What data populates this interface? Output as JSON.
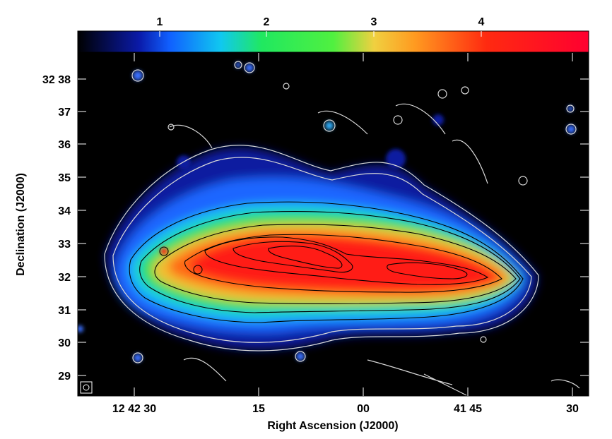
{
  "colorbar": {
    "ticks": [
      "1",
      "2",
      "3",
      "4"
    ],
    "stops": [
      "#000000",
      "#0a1aa8",
      "#1060ff",
      "#10c8f0",
      "#20e860",
      "#50f040",
      "#f0d040",
      "#ff9a20",
      "#ff2a10",
      "#ff0030"
    ]
  },
  "yaxis": {
    "label": "Declination (J2000)",
    "ticks": [
      "32 38",
      "37",
      "36",
      "35",
      "34",
      "33",
      "32",
      "31",
      "30",
      "29"
    ]
  },
  "xaxis": {
    "label": "Right Ascension (J2000)",
    "ticks": [
      "12 42 30",
      "15",
      "00",
      "41 45",
      "30"
    ]
  },
  "colors": {
    "background": "#000000",
    "contour_outer": "#d8d8d8",
    "contour_inner": "#000000"
  }
}
